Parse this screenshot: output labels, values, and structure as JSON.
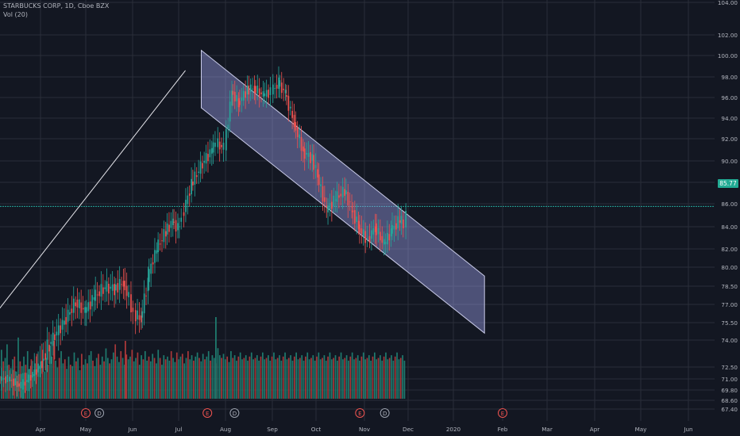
{
  "symbol": {
    "title": "STARBUCKS CORP, 1D, Cboe BZX",
    "indicator": "Vol (20)"
  },
  "colors": {
    "background": "#131722",
    "grid": "#2a2e39",
    "up": "#26a69a",
    "down": "#ef5350",
    "up_vol": "#1f7a6e",
    "down_vol": "#a8383a",
    "channel_fill": "#9598e0",
    "channel_edge": "#c9cbe8",
    "midline": "#e6e6ec",
    "axis_text": "#b2b5be",
    "price_line": "#26a69a"
  },
  "chart_data": {
    "type": "candlestick",
    "title": "STARBUCKS CORP, 1D, Cboe BZX",
    "current_price": "85.77",
    "ylim": [
      67.0,
      104.0
    ],
    "y_ticks": [
      "67.40",
      "68.60",
      "69.80",
      "71.00",
      "72.50",
      "74.00",
      "75.50",
      "77.00",
      "78.50",
      "80.00",
      "82.00",
      "84.00",
      "86.00",
      "88.00",
      "90.00",
      "92.00",
      "94.00",
      "96.00",
      "98.00",
      "100.00",
      "102.00",
      "104.00"
    ],
    "x_ticks": [
      "Apr",
      "May",
      "Jun",
      "Jul",
      "Aug",
      "Sep",
      "Oct",
      "Nov",
      "Dec",
      "2020",
      "Feb",
      "Mar",
      "Apr",
      "May",
      "Jun"
    ],
    "event_markers": [
      {
        "label": "E",
        "month": "May",
        "day": 0.0
      },
      {
        "label": "D",
        "month": "May",
        "day": 0.3
      },
      {
        "label": "E",
        "month": "Aug",
        "day": -0.4
      },
      {
        "label": "D",
        "month": "Aug",
        "day": 0.2
      },
      {
        "label": "E",
        "month": "Nov",
        "day": -0.1
      },
      {
        "label": "D",
        "month": "Nov",
        "day": 0.45
      },
      {
        "label": "E",
        "month": "Feb",
        "day": 0.0
      }
    ],
    "trend_line": {
      "from": {
        "month": "Jul",
        "day": 0.15,
        "price": 98.6
      },
      "to": {
        "month": "Mar",
        "day": -0.45,
        "price": 74.0
      }
    },
    "channel": {
      "start_month": "Jul",
      "start_day": 0.5,
      "end_month": "Feb",
      "end_day": -0.4,
      "upper": [
        100.5,
        79.3
      ],
      "lower": [
        95.0,
        74.6
      ]
    },
    "series": [
      {
        "name": "price",
        "points": [
          [
            "Mar",
            0.0,
            71.0
          ],
          [
            "Mar",
            0.3,
            70.2
          ],
          [
            "Mar",
            0.6,
            71.6
          ],
          [
            "Mar",
            0.85,
            72.8
          ],
          [
            "Apr",
            0.05,
            74.2
          ],
          [
            "Apr",
            0.3,
            75.6
          ],
          [
            "Apr",
            0.55,
            77.2
          ],
          [
            "Apr",
            0.8,
            76.4
          ],
          [
            "May",
            0.0,
            77.6
          ],
          [
            "May",
            0.2,
            78.4
          ],
          [
            "May",
            0.45,
            78.3
          ],
          [
            "May",
            0.65,
            78.8
          ],
          [
            "May",
            0.85,
            77.5
          ],
          [
            "Jun",
            -0.05,
            76.2
          ],
          [
            "Jun",
            0.05,
            75.8
          ],
          [
            "Jun",
            0.2,
            79.0
          ],
          [
            "Jun",
            0.35,
            82.0
          ],
          [
            "Jun",
            0.55,
            83.6
          ],
          [
            "Jun",
            0.75,
            84.5
          ],
          [
            "Jun",
            0.9,
            83.8
          ],
          [
            "Jul",
            0.0,
            84.9
          ],
          [
            "Jul",
            0.1,
            87.8
          ],
          [
            "Jul",
            0.3,
            89.8
          ],
          [
            "Jul",
            0.55,
            91.0
          ],
          [
            "Jul",
            0.75,
            91.6
          ],
          [
            "Jul",
            0.85,
            91.2
          ],
          [
            "Aug",
            0.0,
            96.6
          ],
          [
            "Aug",
            0.15,
            95.4
          ],
          [
            "Aug",
            0.3,
            96.8
          ],
          [
            "Aug",
            0.5,
            96.9
          ],
          [
            "Aug",
            0.65,
            96.2
          ],
          [
            "Aug",
            0.85,
            96.6
          ],
          [
            "Sep",
            0.0,
            97.4
          ],
          [
            "Sep",
            0.15,
            96.4
          ],
          [
            "Sep",
            0.3,
            93.5
          ],
          [
            "Sep",
            0.5,
            90.8
          ],
          [
            "Sep",
            0.7,
            90.2
          ],
          [
            "Sep",
            0.9,
            88.6
          ],
          [
            "Oct",
            0.05,
            85.4
          ],
          [
            "Oct",
            0.25,
            86.5
          ],
          [
            "Oct",
            0.45,
            87.2
          ],
          [
            "Oct",
            0.65,
            85.5
          ],
          [
            "Oct",
            0.8,
            84.0
          ],
          [
            "Oct",
            0.95,
            82.8
          ],
          [
            "Nov",
            0.1,
            84.0
          ],
          [
            "Nov",
            0.25,
            82.4
          ],
          [
            "Nov",
            0.45,
            83.6
          ],
          [
            "Nov",
            0.6,
            84.6
          ],
          [
            "Nov",
            0.8,
            84.2
          ],
          [
            "Nov",
            0.9,
            85.77
          ]
        ]
      },
      {
        "name": "Vol (20)",
        "values": [
          0.72,
          0.55,
          0.6,
          0.8,
          0.5,
          0.45,
          0.58,
          0.62,
          0.4,
          0.9,
          0.55,
          0.48,
          0.62,
          0.5,
          0.7,
          0.44,
          0.58,
          0.36,
          0.52,
          0.66,
          0.48,
          0.55,
          0.72,
          0.4,
          0.6,
          0.5,
          0.78,
          0.62,
          0.85,
          0.56,
          0.46,
          0.6,
          0.7,
          0.52,
          0.58,
          0.44,
          0.62,
          0.5,
          0.48,
          0.68,
          0.55,
          0.6,
          0.42,
          0.66,
          0.5,
          0.58,
          0.52,
          0.64,
          0.7,
          0.56,
          0.48,
          0.6,
          0.66,
          0.5,
          0.62,
          0.55,
          0.74,
          0.6,
          0.52,
          0.58,
          0.68,
          0.8,
          0.62,
          0.54,
          0.7,
          0.6,
          0.5,
          0.65,
          0.58,
          0.62,
          0.72,
          0.55,
          0.6,
          0.68,
          0.5,
          0.64,
          0.58,
          0.7,
          0.56,
          0.62,
          0.55,
          0.66,
          0.6,
          0.52,
          0.72,
          0.6,
          0.5,
          0.64,
          0.58,
          0.62,
          0.56,
          0.7,
          0.6,
          0.54,
          0.68,
          0.58,
          0.62,
          0.66,
          0.52,
          0.6,
          0.7,
          0.58,
          0.64,
          0.56,
          0.62,
          0.68,
          0.6,
          0.55,
          0.66,
          0.58,
          0.62,
          0.7,
          0.56,
          0.64,
          0.6,
          0.52,
          0.58,
          0.64,
          0.6,
          0.66,
          0.58,
          0.62,
          0.54,
          0.7,
          0.6,
          0.64,
          0.56,
          0.62,
          0.68,
          0.58,
          0.6,
          0.64,
          0.56,
          0.62,
          0.68,
          0.58,
          0.6,
          0.64,
          0.56,
          0.62,
          0.68,
          0.58,
          0.6,
          0.64,
          0.56,
          0.62,
          0.68,
          0.58,
          0.6,
          0.64,
          0.56,
          0.62,
          0.68,
          0.58,
          0.6,
          0.64,
          0.56,
          0.62,
          0.68,
          0.58,
          0.6,
          0.64,
          0.56,
          0.62,
          0.68,
          0.58,
          0.6,
          0.64,
          0.56,
          0.62,
          0.68,
          0.58,
          0.6,
          0.64,
          0.56,
          0.62,
          0.68,
          0.58,
          0.6,
          0.64,
          0.56,
          0.62,
          0.68,
          0.58,
          0.6,
          0.64,
          0.56,
          0.62,
          0.68,
          0.58,
          0.6,
          0.64,
          0.56,
          0.62,
          0.68,
          0.58,
          0.6,
          0.64,
          0.56,
          0.62,
          0.68,
          0.58,
          0.6,
          0.64,
          0.56,
          0.62,
          0.68,
          0.58,
          0.6,
          0.64,
          0.56,
          0.62,
          0.68,
          0.58,
          0.6,
          0.64,
          0.56,
          0.62,
          0.68,
          0.58,
          0.6,
          0.64,
          0.56,
          0.62,
          0.68,
          0.58,
          0.6,
          0.64,
          0.56,
          0.62,
          0.68
        ]
      }
    ]
  }
}
